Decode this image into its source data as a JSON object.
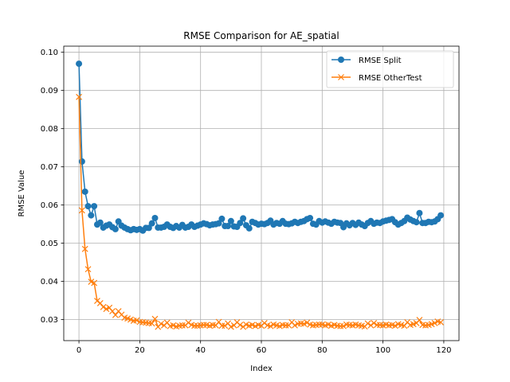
{
  "chart_data": {
    "type": "line",
    "title": "RMSE Comparison for AE_spatial",
    "xlabel": "Index",
    "ylabel": "RMSE Value",
    "xlim": [
      -5,
      125
    ],
    "ylim": [
      0.0245,
      0.1016
    ],
    "x_ticks": [
      "0",
      "20",
      "40",
      "60",
      "80",
      "100",
      "120"
    ],
    "y_ticks": [
      "0.03",
      "0.04",
      "0.05",
      "0.06",
      "0.07",
      "0.08",
      "0.09",
      "0.10"
    ],
    "grid": true,
    "legend_position": "top-right",
    "series": [
      {
        "name": "RMSE Split",
        "color": "#1f77b4",
        "marker": "circle",
        "values": [
          0.097,
          0.0714,
          0.0635,
          0.0597,
          0.0573,
          0.0597,
          0.0549,
          0.0554,
          0.0541,
          0.0546,
          0.0549,
          0.0542,
          0.0537,
          0.0557,
          0.0546,
          0.0541,
          0.0537,
          0.0534,
          0.0537,
          0.0535,
          0.0537,
          0.0533,
          0.054,
          0.054,
          0.0552,
          0.0566,
          0.0541,
          0.0541,
          0.0543,
          0.0549,
          0.0543,
          0.054,
          0.0545,
          0.0541,
          0.0548,
          0.0541,
          0.0543,
          0.0549,
          0.0543,
          0.0546,
          0.0549,
          0.0552,
          0.055,
          0.0547,
          0.0549,
          0.055,
          0.0552,
          0.0564,
          0.0545,
          0.0545,
          0.0558,
          0.0544,
          0.0543,
          0.0553,
          0.0565,
          0.0547,
          0.0539,
          0.0556,
          0.0553,
          0.0549,
          0.0551,
          0.055,
          0.0553,
          0.0559,
          0.0549,
          0.0553,
          0.0551,
          0.0558,
          0.0551,
          0.055,
          0.0552,
          0.0556,
          0.0553,
          0.0556,
          0.0558,
          0.0563,
          0.0566,
          0.0551,
          0.0549,
          0.0558,
          0.0554,
          0.0557,
          0.0554,
          0.0551,
          0.0556,
          0.0554,
          0.0553,
          0.0542,
          0.0552,
          0.0547,
          0.0553,
          0.0548,
          0.0554,
          0.0549,
          0.0545,
          0.0553,
          0.0558,
          0.0551,
          0.0554,
          0.0553,
          0.0557,
          0.0559,
          0.0561,
          0.0563,
          0.0555,
          0.0549,
          0.0553,
          0.0558,
          0.0567,
          0.0562,
          0.0558,
          0.0555,
          0.0579,
          0.0553,
          0.0553,
          0.0556,
          0.0555,
          0.0557,
          0.0563,
          0.0573
        ]
      },
      {
        "name": "RMSE OtherTest",
        "color": "#ff7f0e",
        "marker": "x",
        "values": [
          0.0883,
          0.0586,
          0.0485,
          0.0432,
          0.0399,
          0.0396,
          0.0349,
          0.0343,
          0.0333,
          0.0328,
          0.0331,
          0.0322,
          0.0312,
          0.0322,
          0.0313,
          0.0305,
          0.0303,
          0.03,
          0.0297,
          0.0298,
          0.0294,
          0.0293,
          0.0292,
          0.0291,
          0.029,
          0.0302,
          0.0281,
          0.0289,
          0.0285,
          0.0292,
          0.0283,
          0.0285,
          0.0282,
          0.0284,
          0.0285,
          0.0285,
          0.0292,
          0.0286,
          0.0284,
          0.0284,
          0.0285,
          0.0286,
          0.0286,
          0.0284,
          0.0286,
          0.0285,
          0.0294,
          0.0284,
          0.0284,
          0.029,
          0.0281,
          0.0285,
          0.0293,
          0.0286,
          0.0281,
          0.0287,
          0.0284,
          0.0286,
          0.0283,
          0.0286,
          0.0284,
          0.0291,
          0.0285,
          0.0283,
          0.0287,
          0.0285,
          0.0283,
          0.0286,
          0.0285,
          0.0285,
          0.0293,
          0.0285,
          0.0289,
          0.029,
          0.0289,
          0.0292,
          0.0287,
          0.0285,
          0.0286,
          0.0287,
          0.0287,
          0.0285,
          0.0287,
          0.0284,
          0.0286,
          0.0284,
          0.0283,
          0.0283,
          0.0287,
          0.0286,
          0.0285,
          0.0287,
          0.0285,
          0.0284,
          0.0282,
          0.029,
          0.0285,
          0.0291,
          0.0286,
          0.0286,
          0.0285,
          0.0287,
          0.0285,
          0.0286,
          0.0284,
          0.0288,
          0.0286,
          0.0284,
          0.0293,
          0.0286,
          0.0288,
          0.0291,
          0.0299,
          0.0286,
          0.0285,
          0.0286,
          0.0288,
          0.0291,
          0.0295,
          0.0293
        ]
      }
    ]
  }
}
